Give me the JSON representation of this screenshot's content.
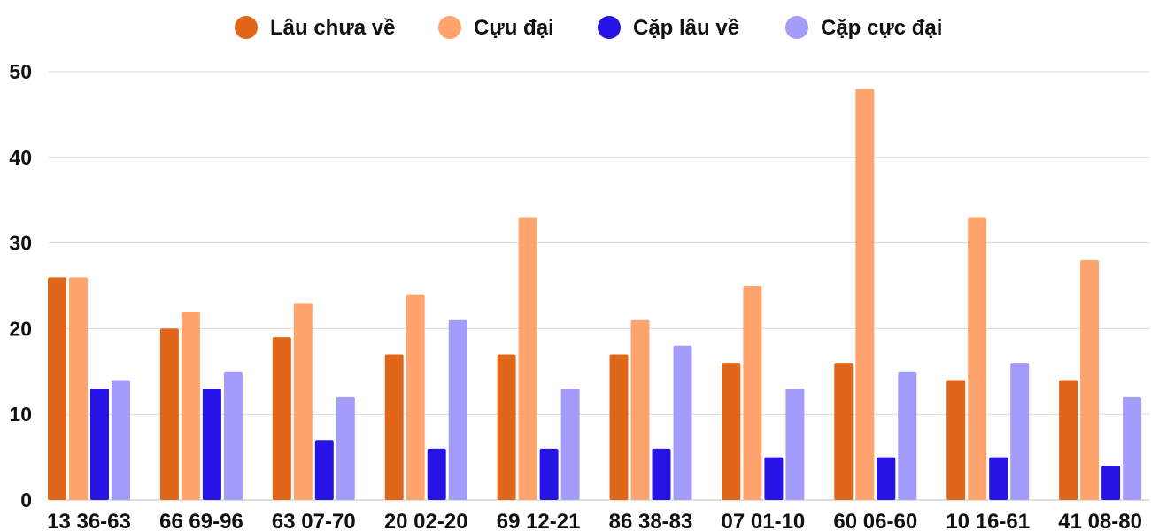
{
  "chart_data": {
    "type": "bar",
    "categories": [
      "13 36-63",
      "66 69-96",
      "63 07-70",
      "20 02-20",
      "69 12-21",
      "86 38-83",
      "07 01-10",
      "60 06-60",
      "10 16-61",
      "41 08-80"
    ],
    "series": [
      {
        "name": "Lâu chưa về",
        "color": "#e0661a",
        "values": [
          26,
          20,
          19,
          17,
          17,
          17,
          16,
          16,
          14,
          14
        ]
      },
      {
        "name": "Cựu đại",
        "color": "#ffa46c",
        "values": [
          26,
          22,
          23,
          24,
          33,
          21,
          25,
          48,
          33,
          28
        ]
      },
      {
        "name": "Cặp lâu về",
        "color": "#2614e6",
        "values": [
          13,
          13,
          7,
          6,
          6,
          6,
          5,
          5,
          5,
          4
        ]
      },
      {
        "name": "Cặp cực đại",
        "color": "#a49cfb",
        "values": [
          14,
          15,
          12,
          21,
          13,
          18,
          13,
          15,
          16,
          12
        ]
      }
    ],
    "yticks": [
      "0",
      "10",
      "20",
      "30",
      "40",
      "50"
    ],
    "ylim": [
      0,
      50
    ],
    "grid": true,
    "legend_position": "top-center"
  }
}
